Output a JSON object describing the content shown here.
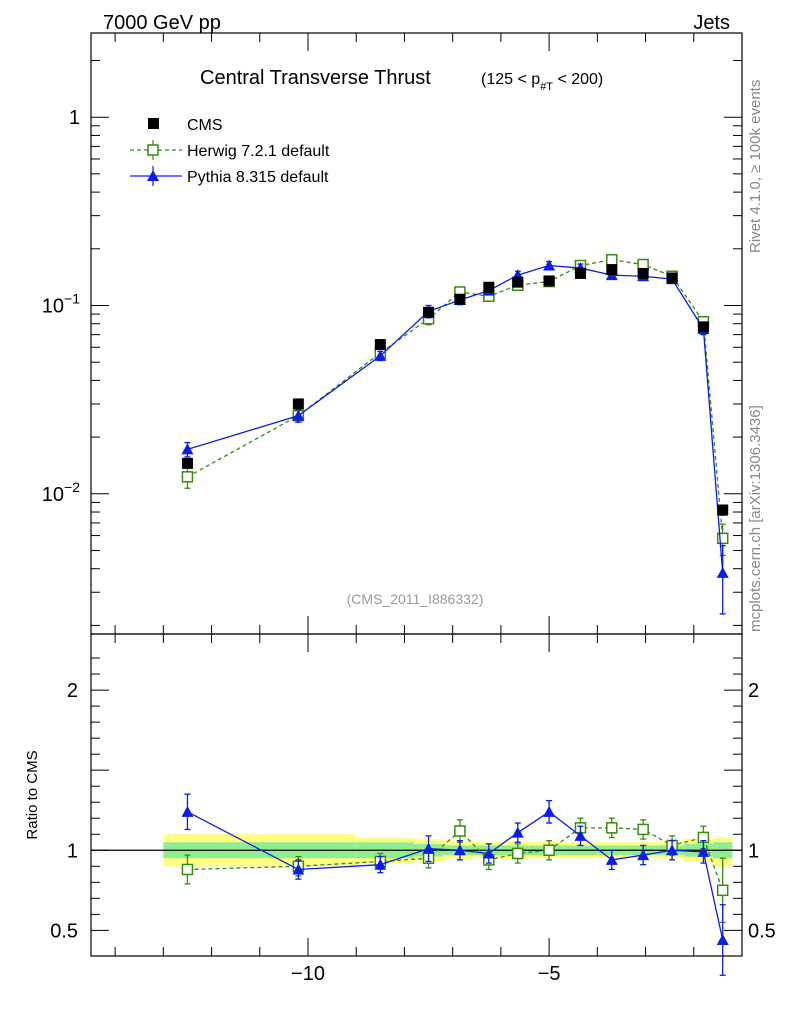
{
  "header": {
    "left": "7000 GeV pp",
    "right": "Jets"
  },
  "side_labels": {
    "rivet": "Rivet 4.1.0, ≥ 100k events",
    "mcplots": "mcplots.cern.ch [arXiv:1306.3436]"
  },
  "colors": {
    "cms": "#000000",
    "herwig": "#3a8a0e",
    "pythia": "#0a1ee6",
    "band_outer": "#ffff80",
    "band_inner": "#90ee90"
  },
  "chart_data": [
    {
      "type": "scatter",
      "panel": "main",
      "title": "Central Transverse Thrust",
      "title_cut": {
        "lo": "(125 < p",
        "sub": "#T",
        "hi": " < 200)"
      },
      "annotation": "(CMS_2011_I886332)",
      "yscale": "log",
      "xlim": [
        -14.5,
        -1.0
      ],
      "ylim": [
        0.0018,
        2.8
      ],
      "y_ticks": [
        {
          "value": 1,
          "label": "1"
        },
        {
          "value": 0.1,
          "label": "10",
          "exp": "−1"
        },
        {
          "value": 0.01,
          "label": "10",
          "exp": "−2"
        }
      ],
      "x_ticks": [
        {
          "value": -10,
          "label": "−10"
        },
        {
          "value": -5,
          "label": "−5"
        }
      ],
      "legend_position": "top-left",
      "x": [
        -12.5,
        -10.2,
        -8.5,
        -7.5,
        -6.85,
        -6.25,
        -5.65,
        -5.0,
        -4.35,
        -3.7,
        -3.05,
        -2.45,
        -1.8,
        -1.4
      ],
      "series": [
        {
          "name": "CMS",
          "marker": "square-filled",
          "values": [
            0.0145,
            0.03,
            0.062,
            0.092,
            0.108,
            0.125,
            0.133,
            0.135,
            0.148,
            0.155,
            0.148,
            0.14,
            0.077,
            0.0082
          ],
          "errors": [
            0.0008,
            0.0015,
            0.003,
            0.005,
            0.005,
            0.006,
            0.006,
            0.006,
            0.007,
            0.007,
            0.007,
            0.007,
            0.004,
            0.0005
          ]
        },
        {
          "name": "Herwig 7.2.1 default",
          "marker": "square-open",
          "line": "dashed",
          "values": [
            0.0123,
            0.026,
            0.056,
            0.085,
            0.118,
            0.112,
            0.128,
            0.134,
            0.163,
            0.175,
            0.165,
            0.143,
            0.082,
            0.0058
          ],
          "errors": [
            0.0016,
            0.0015,
            0.003,
            0.006,
            0.006,
            0.006,
            0.006,
            0.006,
            0.007,
            0.007,
            0.007,
            0.007,
            0.005,
            0.0011
          ]
        },
        {
          "name": "Pythia 8.315 default",
          "marker": "triangle-filled",
          "line": "solid",
          "values": [
            0.0172,
            0.026,
            0.054,
            0.093,
            0.107,
            0.12,
            0.145,
            0.163,
            0.158,
            0.145,
            0.143,
            0.138,
            0.075,
            0.0038
          ],
          "errors": [
            0.0015,
            0.002,
            0.003,
            0.007,
            0.006,
            0.006,
            0.007,
            0.008,
            0.008,
            0.007,
            0.007,
            0.007,
            0.005,
            0.0015
          ]
        }
      ]
    },
    {
      "type": "line",
      "panel": "ratio",
      "ylabel": "Ratio to CMS",
      "xlim": [
        -14.5,
        -1.0
      ],
      "ylim": [
        0.34,
        2.35
      ],
      "y_ticks": [
        {
          "value": 2,
          "label": "2"
        },
        {
          "value": 1,
          "label": "1"
        },
        {
          "value": 0.5,
          "label": "0.5"
        }
      ],
      "x_ticks": [
        {
          "value": -10,
          "label": "−10"
        },
        {
          "value": -5,
          "label": "−5"
        }
      ],
      "bands": {
        "edges": [
          -13.0,
          -9.0,
          -7.8,
          -7.2,
          -6.6,
          -6.0,
          -5.4,
          -4.7,
          -4.0,
          -3.4,
          -2.8,
          -2.2,
          -1.6,
          -1.2
        ],
        "outer": [
          [
            0.9,
            1.1
          ],
          [
            0.92,
            1.08
          ],
          [
            0.93,
            1.07
          ],
          [
            0.94,
            1.06
          ],
          [
            0.95,
            1.05
          ],
          [
            0.94,
            1.06
          ],
          [
            0.95,
            1.05
          ],
          [
            0.95,
            1.05
          ],
          [
            0.95,
            1.05
          ],
          [
            0.95,
            1.05
          ],
          [
            0.95,
            1.05
          ],
          [
            0.93,
            1.07
          ],
          [
            0.9,
            1.08
          ]
        ],
        "inner": [
          [
            0.95,
            1.05
          ],
          [
            0.95,
            1.05
          ],
          [
            0.96,
            1.04
          ],
          [
            0.97,
            1.03
          ],
          [
            0.97,
            1.03
          ],
          [
            0.97,
            1.03
          ],
          [
            0.97,
            1.03
          ],
          [
            0.97,
            1.03
          ],
          [
            0.97,
            1.03
          ],
          [
            0.97,
            1.03
          ],
          [
            0.97,
            1.03
          ],
          [
            0.96,
            1.04
          ],
          [
            0.95,
            1.05
          ]
        ]
      },
      "x": [
        -12.5,
        -10.2,
        -8.5,
        -7.5,
        -6.85,
        -6.25,
        -5.65,
        -5.0,
        -4.35,
        -3.7,
        -3.05,
        -2.45,
        -1.8,
        -1.4
      ],
      "series": [
        {
          "name": "Herwig 7.2.1 default",
          "marker": "square-open",
          "line": "dashed",
          "values": [
            0.88,
            0.9,
            0.93,
            0.95,
            1.12,
            0.94,
            0.98,
            1.0,
            1.14,
            1.14,
            1.13,
            1.03,
            1.08,
            0.75
          ],
          "errors": [
            0.09,
            0.06,
            0.05,
            0.06,
            0.07,
            0.06,
            0.06,
            0.06,
            0.06,
            0.06,
            0.06,
            0.06,
            0.07,
            0.2
          ]
        },
        {
          "name": "Pythia 8.315 default",
          "marker": "triangle-filled",
          "line": "solid",
          "values": [
            1.24,
            0.88,
            0.91,
            1.01,
            1.0,
            0.98,
            1.11,
            1.24,
            1.09,
            0.94,
            0.97,
            1.0,
            0.99,
            0.44
          ],
          "errors": [
            0.11,
            0.06,
            0.05,
            0.08,
            0.06,
            0.06,
            0.06,
            0.07,
            0.06,
            0.06,
            0.06,
            0.06,
            0.07,
            0.22
          ]
        }
      ]
    }
  ]
}
